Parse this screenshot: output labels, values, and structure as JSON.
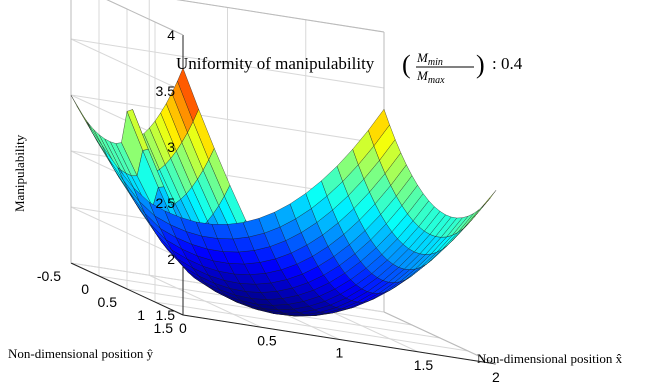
{
  "chart_data": {
    "type": "surface3d",
    "title": {
      "prefix": "Uniformity of manipulability",
      "frac_numerator": "M",
      "frac_numerator_sub": "min",
      "frac_denominator": "M",
      "frac_denominator_sub": "max",
      "suffix": ": 0.4"
    },
    "xlabel": "Non-dimensional position x̂",
    "ylabel": "Non-dimensional position ŷ",
    "zlabel": "Manipulability",
    "xlim": [
      0,
      2
    ],
    "ylim": [
      -0.5,
      1.5
    ],
    "zlim": [
      1.5,
      4
    ],
    "xticks": [
      "0",
      "0.5",
      "1",
      "1.5",
      "2"
    ],
    "yticks": [
      "-0.5",
      "0",
      "0.5",
      "1",
      "1.5"
    ],
    "zticks": [
      "1.5",
      "2",
      "2.5",
      "3",
      "3.5",
      "4"
    ],
    "colormap": "jet",
    "grid": true,
    "legend": false
  }
}
